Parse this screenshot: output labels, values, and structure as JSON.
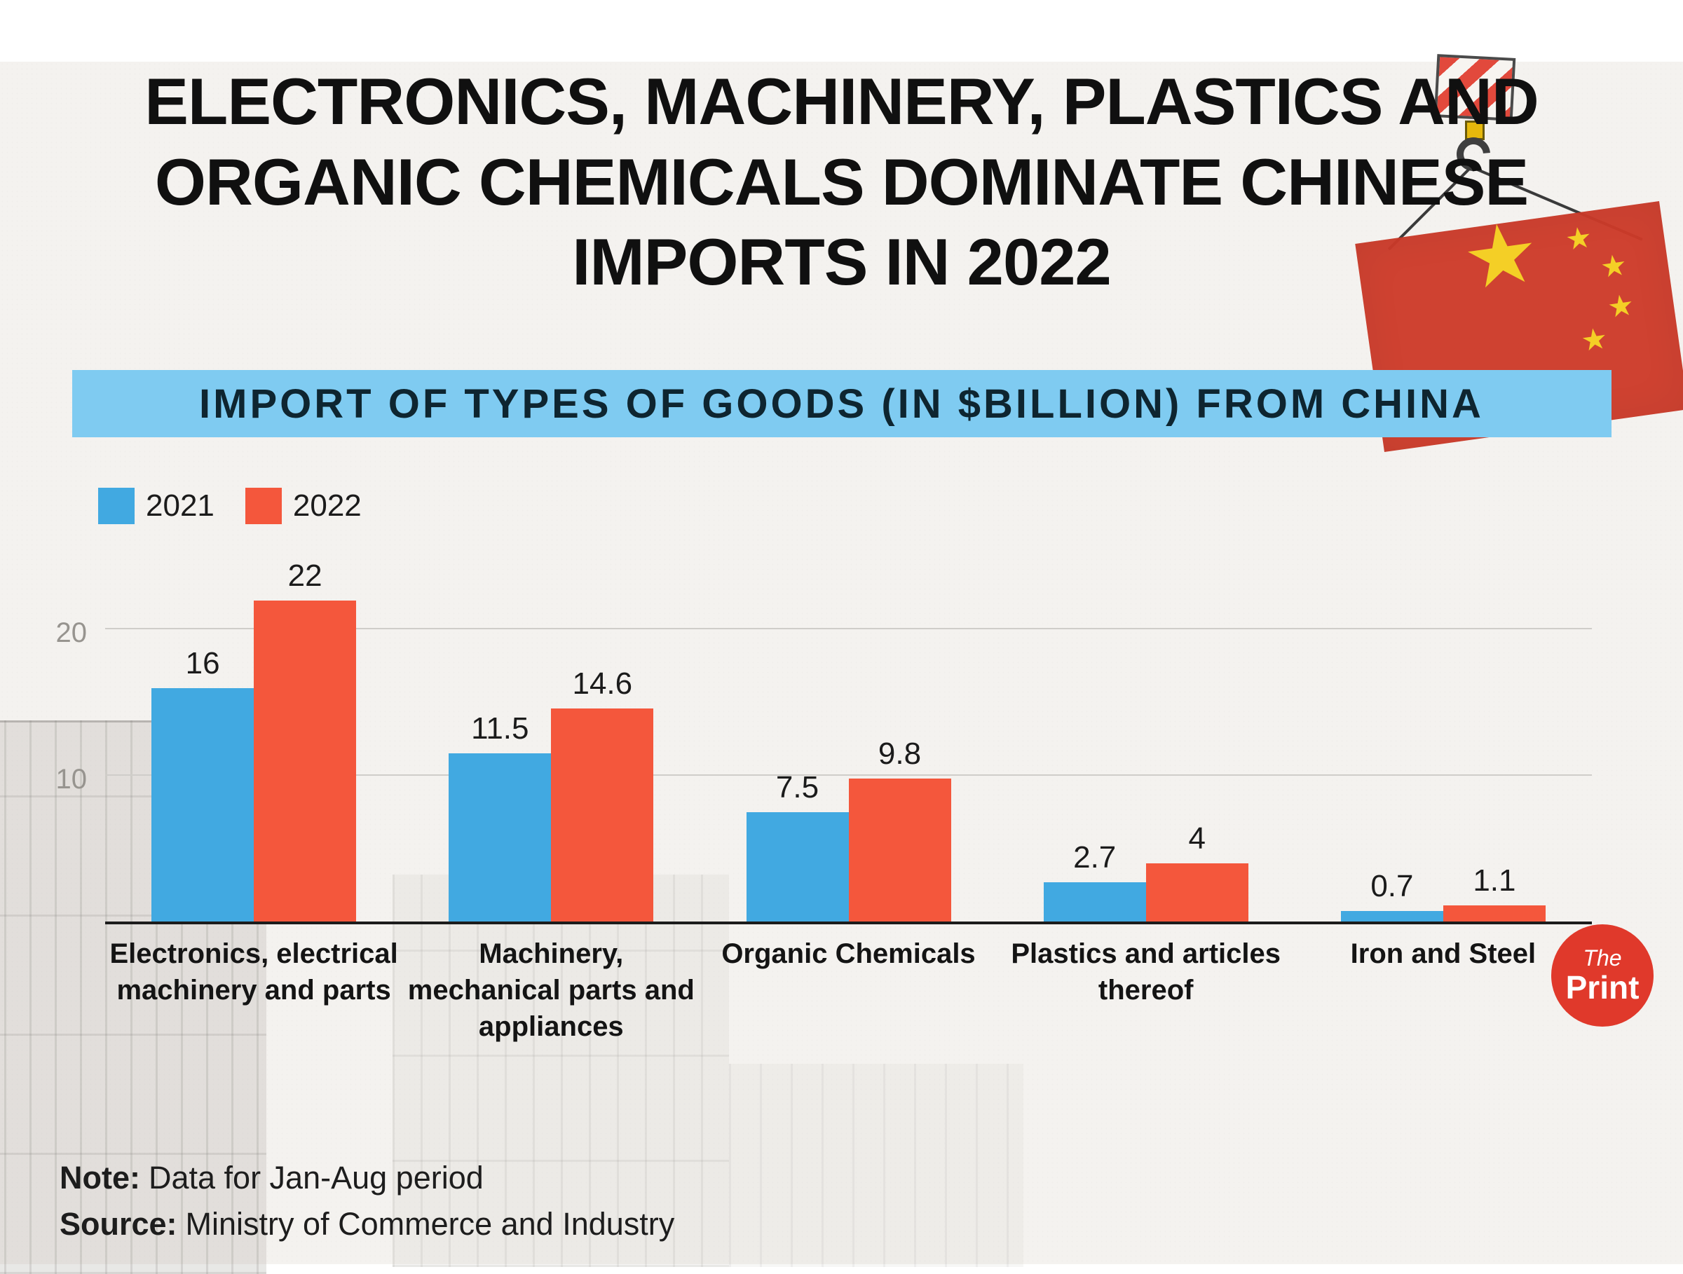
{
  "header": {
    "title_lines": [
      "ELECTRONICS, MACHINERY, PLASTICS AND",
      "ORGANIC CHEMICALS DOMINATE CHINESE",
      "IMPORTS IN 2022"
    ]
  },
  "banner": {
    "text": "IMPORT OF TYPES OF GOODS (IN $BILLION) FROM CHINA"
  },
  "chart_data": {
    "type": "bar",
    "title": "IMPORT OF TYPES OF GOODS (IN $BILLION) FROM CHINA",
    "categories": [
      "Electronics, electrical machinery and parts",
      "Machinery, mechanical parts and appliances",
      "Organic Chemicals",
      "Plastics and articles thereof",
      "Iron and Steel"
    ],
    "series": [
      {
        "name": "2021",
        "color": "#41A9E1",
        "values": [
          16,
          11.5,
          7.5,
          2.7,
          0.7
        ]
      },
      {
        "name": "2022",
        "color": "#F4573C",
        "values": [
          22,
          14.6,
          9.8,
          4,
          1.1
        ]
      }
    ],
    "xlabel": "",
    "ylabel": "",
    "yticks": [
      10,
      20
    ],
    "ylim": [
      0,
      25
    ],
    "grid": true,
    "legend_position": "top-left",
    "value_labels": true
  },
  "footer": {
    "note_label": "Note:",
    "note_text": "Data for Jan-Aug period",
    "source_label": "Source:",
    "source_text": "Ministry of Commerce and Industry"
  },
  "logo": {
    "the": "The",
    "print": "Print"
  },
  "colors": {
    "banner_bg": "#7FCBF1",
    "bar_2021": "#41A9E1",
    "bar_2022": "#F4573C",
    "flag_red": "#CE3B2A",
    "logo_red": "#E0392B"
  }
}
